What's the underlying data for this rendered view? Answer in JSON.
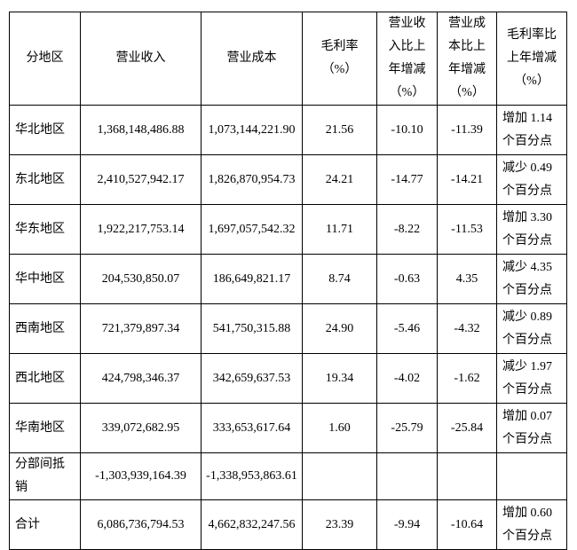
{
  "table": {
    "columns": [
      {
        "key": "region",
        "label": "分地区"
      },
      {
        "key": "revenue",
        "label": "营业收入"
      },
      {
        "key": "cost",
        "label": "营业成本"
      },
      {
        "key": "margin",
        "label": "毛利率\n（%）"
      },
      {
        "key": "revenue_yoy",
        "label": "营业收\n入比上\n年增减\n（%）"
      },
      {
        "key": "cost_yoy",
        "label": "营业成\n本比上\n年增减\n（%）"
      },
      {
        "key": "margin_yoy",
        "label": "毛利率比\n上年增减\n（%）"
      }
    ],
    "rows": [
      {
        "region": "华北地区",
        "revenue": "1,368,148,486.88",
        "cost": "1,073,144,221.90",
        "margin": "21.56",
        "revenue_yoy": "-10.10",
        "cost_yoy": "-11.39",
        "margin_yoy": "增加 1.14\n个百分点"
      },
      {
        "region": "东北地区",
        "revenue": "2,410,527,942.17",
        "cost": "1,826,870,954.73",
        "margin": "24.21",
        "revenue_yoy": "-14.77",
        "cost_yoy": "-14.21",
        "margin_yoy": "减少 0.49\n个百分点"
      },
      {
        "region": "华东地区",
        "revenue": "1,922,217,753.14",
        "cost": "1,697,057,542.32",
        "margin": "11.71",
        "revenue_yoy": "-8.22",
        "cost_yoy": "-11.53",
        "margin_yoy": "增加 3.30\n个百分点"
      },
      {
        "region": "华中地区",
        "revenue": "204,530,850.07",
        "cost": "186,649,821.17",
        "margin": "8.74",
        "revenue_yoy": "-0.63",
        "cost_yoy": "4.35",
        "margin_yoy": "减少 4.35\n个百分点"
      },
      {
        "region": "西南地区",
        "revenue": "721,379,897.34",
        "cost": "541,750,315.88",
        "margin": "24.90",
        "revenue_yoy": "-5.46",
        "cost_yoy": "-4.32",
        "margin_yoy": "减少 0.89\n个百分点"
      },
      {
        "region": "西北地区",
        "revenue": "424,798,346.37",
        "cost": "342,659,637.53",
        "margin": "19.34",
        "revenue_yoy": "-4.02",
        "cost_yoy": "-1.62",
        "margin_yoy": "减少 1.97\n个百分点"
      },
      {
        "region": "华南地区",
        "revenue": "339,072,682.95",
        "cost": "333,653,617.64",
        "margin": "1.60",
        "revenue_yoy": "-25.79",
        "cost_yoy": "-25.84",
        "margin_yoy": "增加 0.07\n个百分点"
      },
      {
        "region": "分部间抵\n销",
        "revenue": "-1,303,939,164.39",
        "cost": "-1,338,953,863.61",
        "margin": "",
        "revenue_yoy": "",
        "cost_yoy": "",
        "margin_yoy": ""
      },
      {
        "region": "合计",
        "revenue": "6,086,736,794.53",
        "cost": "4,662,832,247.56",
        "margin": "23.39",
        "revenue_yoy": "-9.94",
        "cost_yoy": "-10.64",
        "margin_yoy": "增加 0.60\n个百分点"
      }
    ]
  }
}
